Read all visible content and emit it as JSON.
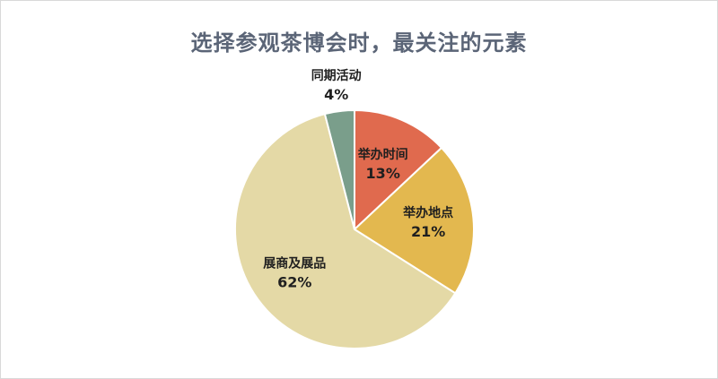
{
  "chart_data": {
    "type": "pie",
    "title": "选择参观茶博会时，最关注的元素",
    "categories": [
      "举办时间",
      "举办地点",
      "展商及展品",
      "同期活动"
    ],
    "values": [
      13,
      21,
      62,
      4
    ],
    "value_labels": [
      "13%",
      "21%",
      "62%",
      "4%"
    ],
    "colors": [
      "#e06a4e",
      "#e3b84f",
      "#e4d9a6",
      "#7a9e8b"
    ],
    "legend": "none"
  }
}
